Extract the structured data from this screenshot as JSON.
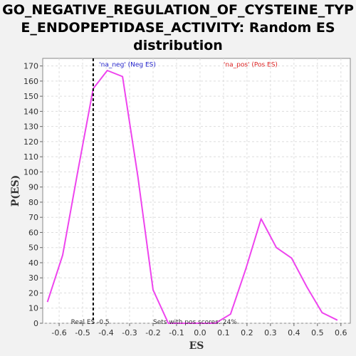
{
  "title_lines": [
    "GO_NEGATIVE_REGULATION_OF_CYSTEINE_TYP",
    "E_ENDOPEPTIDASE_ACTIVITY: Random ES",
    "distribution"
  ],
  "chart_data": {
    "type": "line",
    "xlabel": "ES",
    "ylabel": "P(ES)",
    "xlim": [
      -0.67,
      0.64
    ],
    "ylim": [
      0,
      175
    ],
    "xticks": [
      -0.6,
      -0.5,
      -0.4,
      -0.3,
      -0.2,
      -0.1,
      0.0,
      0.1,
      0.2,
      0.3,
      0.4,
      0.5,
      0.6
    ],
    "xtick_labels": [
      "-0.6",
      "-0.5",
      "-0.4",
      "-0.3",
      "-0.2",
      "-0.1",
      "0.0",
      "0.1",
      "0.2",
      "0.3",
      "0.4",
      "0.5",
      "0.6"
    ],
    "yticks": [
      0,
      10,
      20,
      30,
      40,
      50,
      60,
      70,
      80,
      90,
      100,
      110,
      120,
      130,
      140,
      150,
      160,
      170
    ],
    "ytick_labels": [
      "0",
      "10",
      "20",
      "30",
      "40",
      "50",
      "60",
      "70",
      "80",
      "90",
      "100",
      "110",
      "120",
      "130",
      "140",
      "150",
      "160",
      "170"
    ],
    "grid": true,
    "series": [
      {
        "color": "#ee44ee",
        "x": [
          -0.65,
          -0.585,
          -0.52,
          -0.455,
          -0.395,
          -0.33,
          -0.265,
          -0.2,
          -0.135,
          -0.07,
          0.0,
          0.065,
          0.13,
          0.195,
          0.26,
          0.325,
          0.39,
          0.455,
          0.52,
          0.585
        ],
        "y": [
          14,
          45,
          101,
          155,
          167,
          163,
          97,
          22,
          0,
          0,
          0,
          0,
          6,
          36,
          69,
          50,
          43,
          24,
          7,
          2
        ]
      }
    ],
    "vline": {
      "x": -0.455,
      "color": "#000000"
    },
    "annotations": [
      {
        "text": "'na_neg' (Neg ES)",
        "color": "#2222cc",
        "x": -0.43,
        "y": 171
      },
      {
        "text": "'na_pos' (Pos ES)",
        "color": "#dd2222",
        "x": 0.1,
        "y": 171
      },
      {
        "text": "Real ES -0.5",
        "color": "#333333",
        "x": -0.55,
        "y": 1
      },
      {
        "text": "Sets with pos scores: 24%",
        "color": "#333333",
        "x": -0.2,
        "y": 1
      }
    ]
  }
}
